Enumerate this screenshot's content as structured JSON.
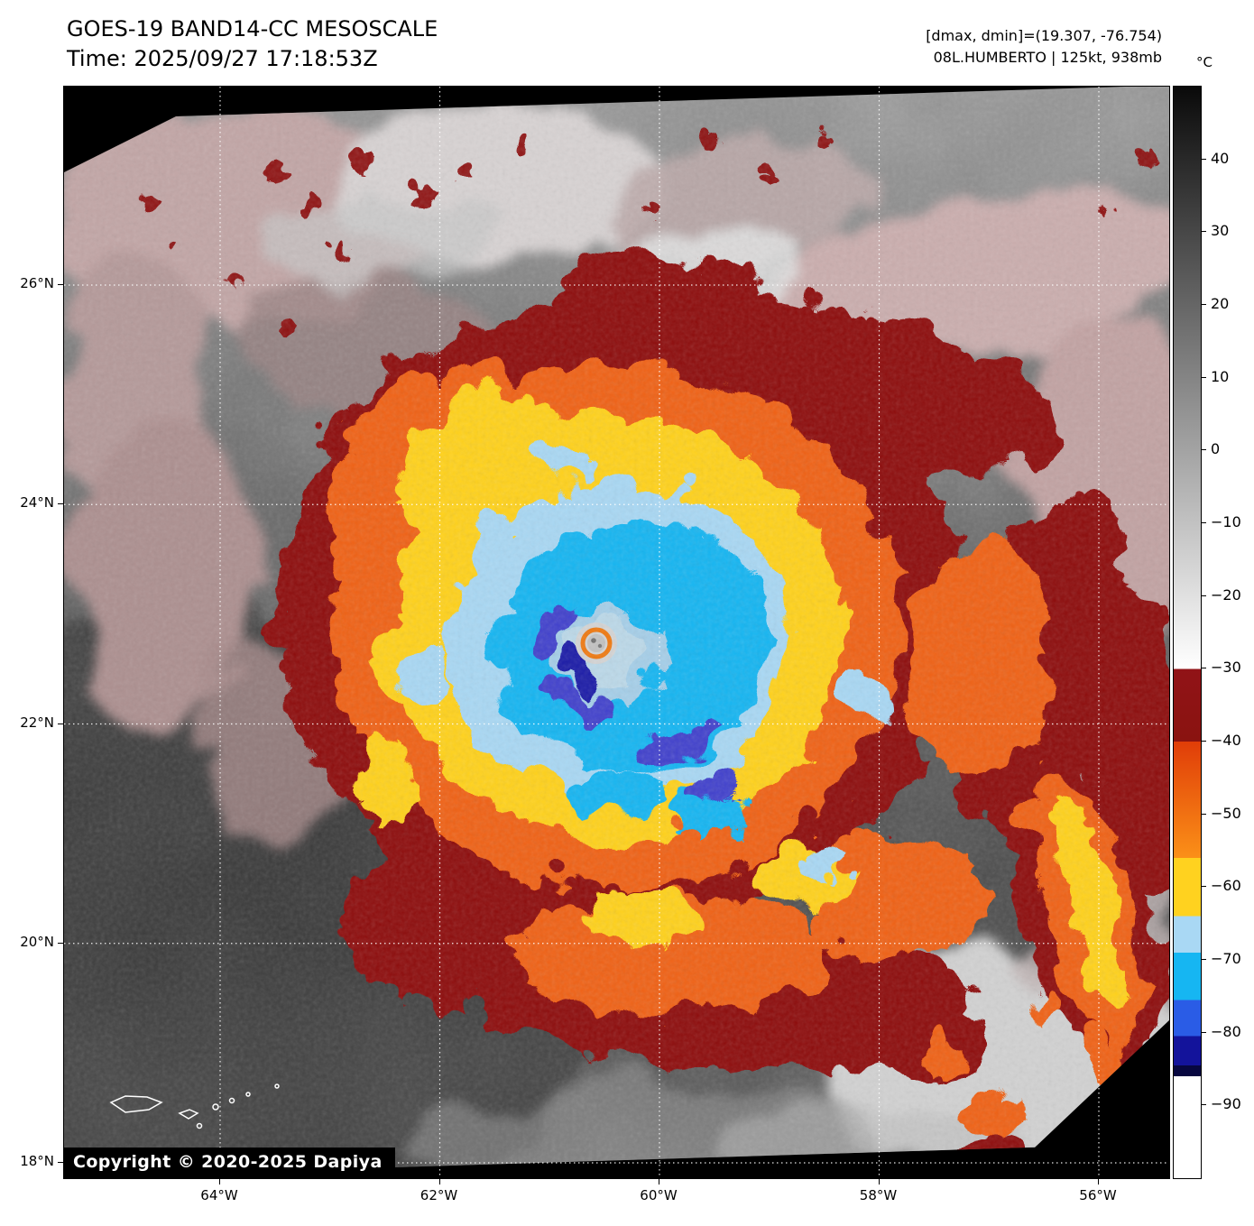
{
  "header": {
    "title": "GOES-19 BAND14-CC MESOSCALE",
    "time": "Time: 2025/09/27 17:18:53Z",
    "dmax_dmin": "[dmax, dmin]=(19.307, -76.754)",
    "storm": "08L.HUMBERTO | 125kt, 938mb"
  },
  "colorbar": {
    "unit": "°C",
    "domain": [
      50,
      -100
    ],
    "ticks": [
      {
        "value": 40,
        "label": "40"
      },
      {
        "value": 30,
        "label": "30"
      },
      {
        "value": 20,
        "label": "20"
      },
      {
        "value": 10,
        "label": "10"
      },
      {
        "value": 0,
        "label": "0"
      },
      {
        "value": -10,
        "label": "−10"
      },
      {
        "value": -20,
        "label": "−20"
      },
      {
        "value": -30,
        "label": "−30"
      },
      {
        "value": -40,
        "label": "−40"
      },
      {
        "value": -50,
        "label": "−50"
      },
      {
        "value": -60,
        "label": "−60"
      },
      {
        "value": -70,
        "label": "−70"
      },
      {
        "value": -80,
        "label": "−80"
      },
      {
        "value": -90,
        "label": "−90"
      }
    ],
    "segments": [
      {
        "from": 50,
        "to": -30,
        "color_from": "#0a0a0a",
        "color_to": "#ffffff"
      },
      {
        "from": -30,
        "to": -40,
        "color_from": "#911317",
        "color_to": "#8a1310"
      },
      {
        "from": -40,
        "to": -56,
        "color_from": "#e03d08",
        "color_to": "#fb9018"
      },
      {
        "from": -56,
        "to": -64,
        "color_from": "#ffd21f",
        "color_to": "#ffd21f"
      },
      {
        "from": -64,
        "to": -69,
        "color_from": "#a9d8f4",
        "color_to": "#a9d8f4"
      },
      {
        "from": -69,
        "to": -75.5,
        "color_from": "#16b6f2",
        "color_to": "#16b6f2"
      },
      {
        "from": -75.5,
        "to": -80.5,
        "color_from": "#2a5ce6",
        "color_to": "#2a5ce6"
      },
      {
        "from": -80.5,
        "to": -84.5,
        "color_from": "#13139b",
        "color_to": "#13139b"
      },
      {
        "from": -84.5,
        "to": -86,
        "color_from": "#070740",
        "color_to": "#070740"
      },
      {
        "from": -86,
        "to": -100,
        "color_from": "#ffffff",
        "color_to": "#ffffff"
      }
    ]
  },
  "map": {
    "lat_ticks": [
      {
        "value": 26,
        "label": "26°N"
      },
      {
        "value": 24,
        "label": "24°N"
      },
      {
        "value": 22,
        "label": "22°N"
      },
      {
        "value": 20,
        "label": "20°N"
      },
      {
        "value": 18,
        "label": "18°N"
      }
    ],
    "lon_ticks": [
      {
        "value": 64,
        "label": "64°W"
      },
      {
        "value": 62,
        "label": "62°W"
      },
      {
        "value": 60,
        "label": "60°W"
      },
      {
        "value": 58,
        "label": "58°W"
      },
      {
        "value": 56,
        "label": "56°W"
      }
    ],
    "copyright": "Copyright © 2020-2025 Dapiya"
  }
}
